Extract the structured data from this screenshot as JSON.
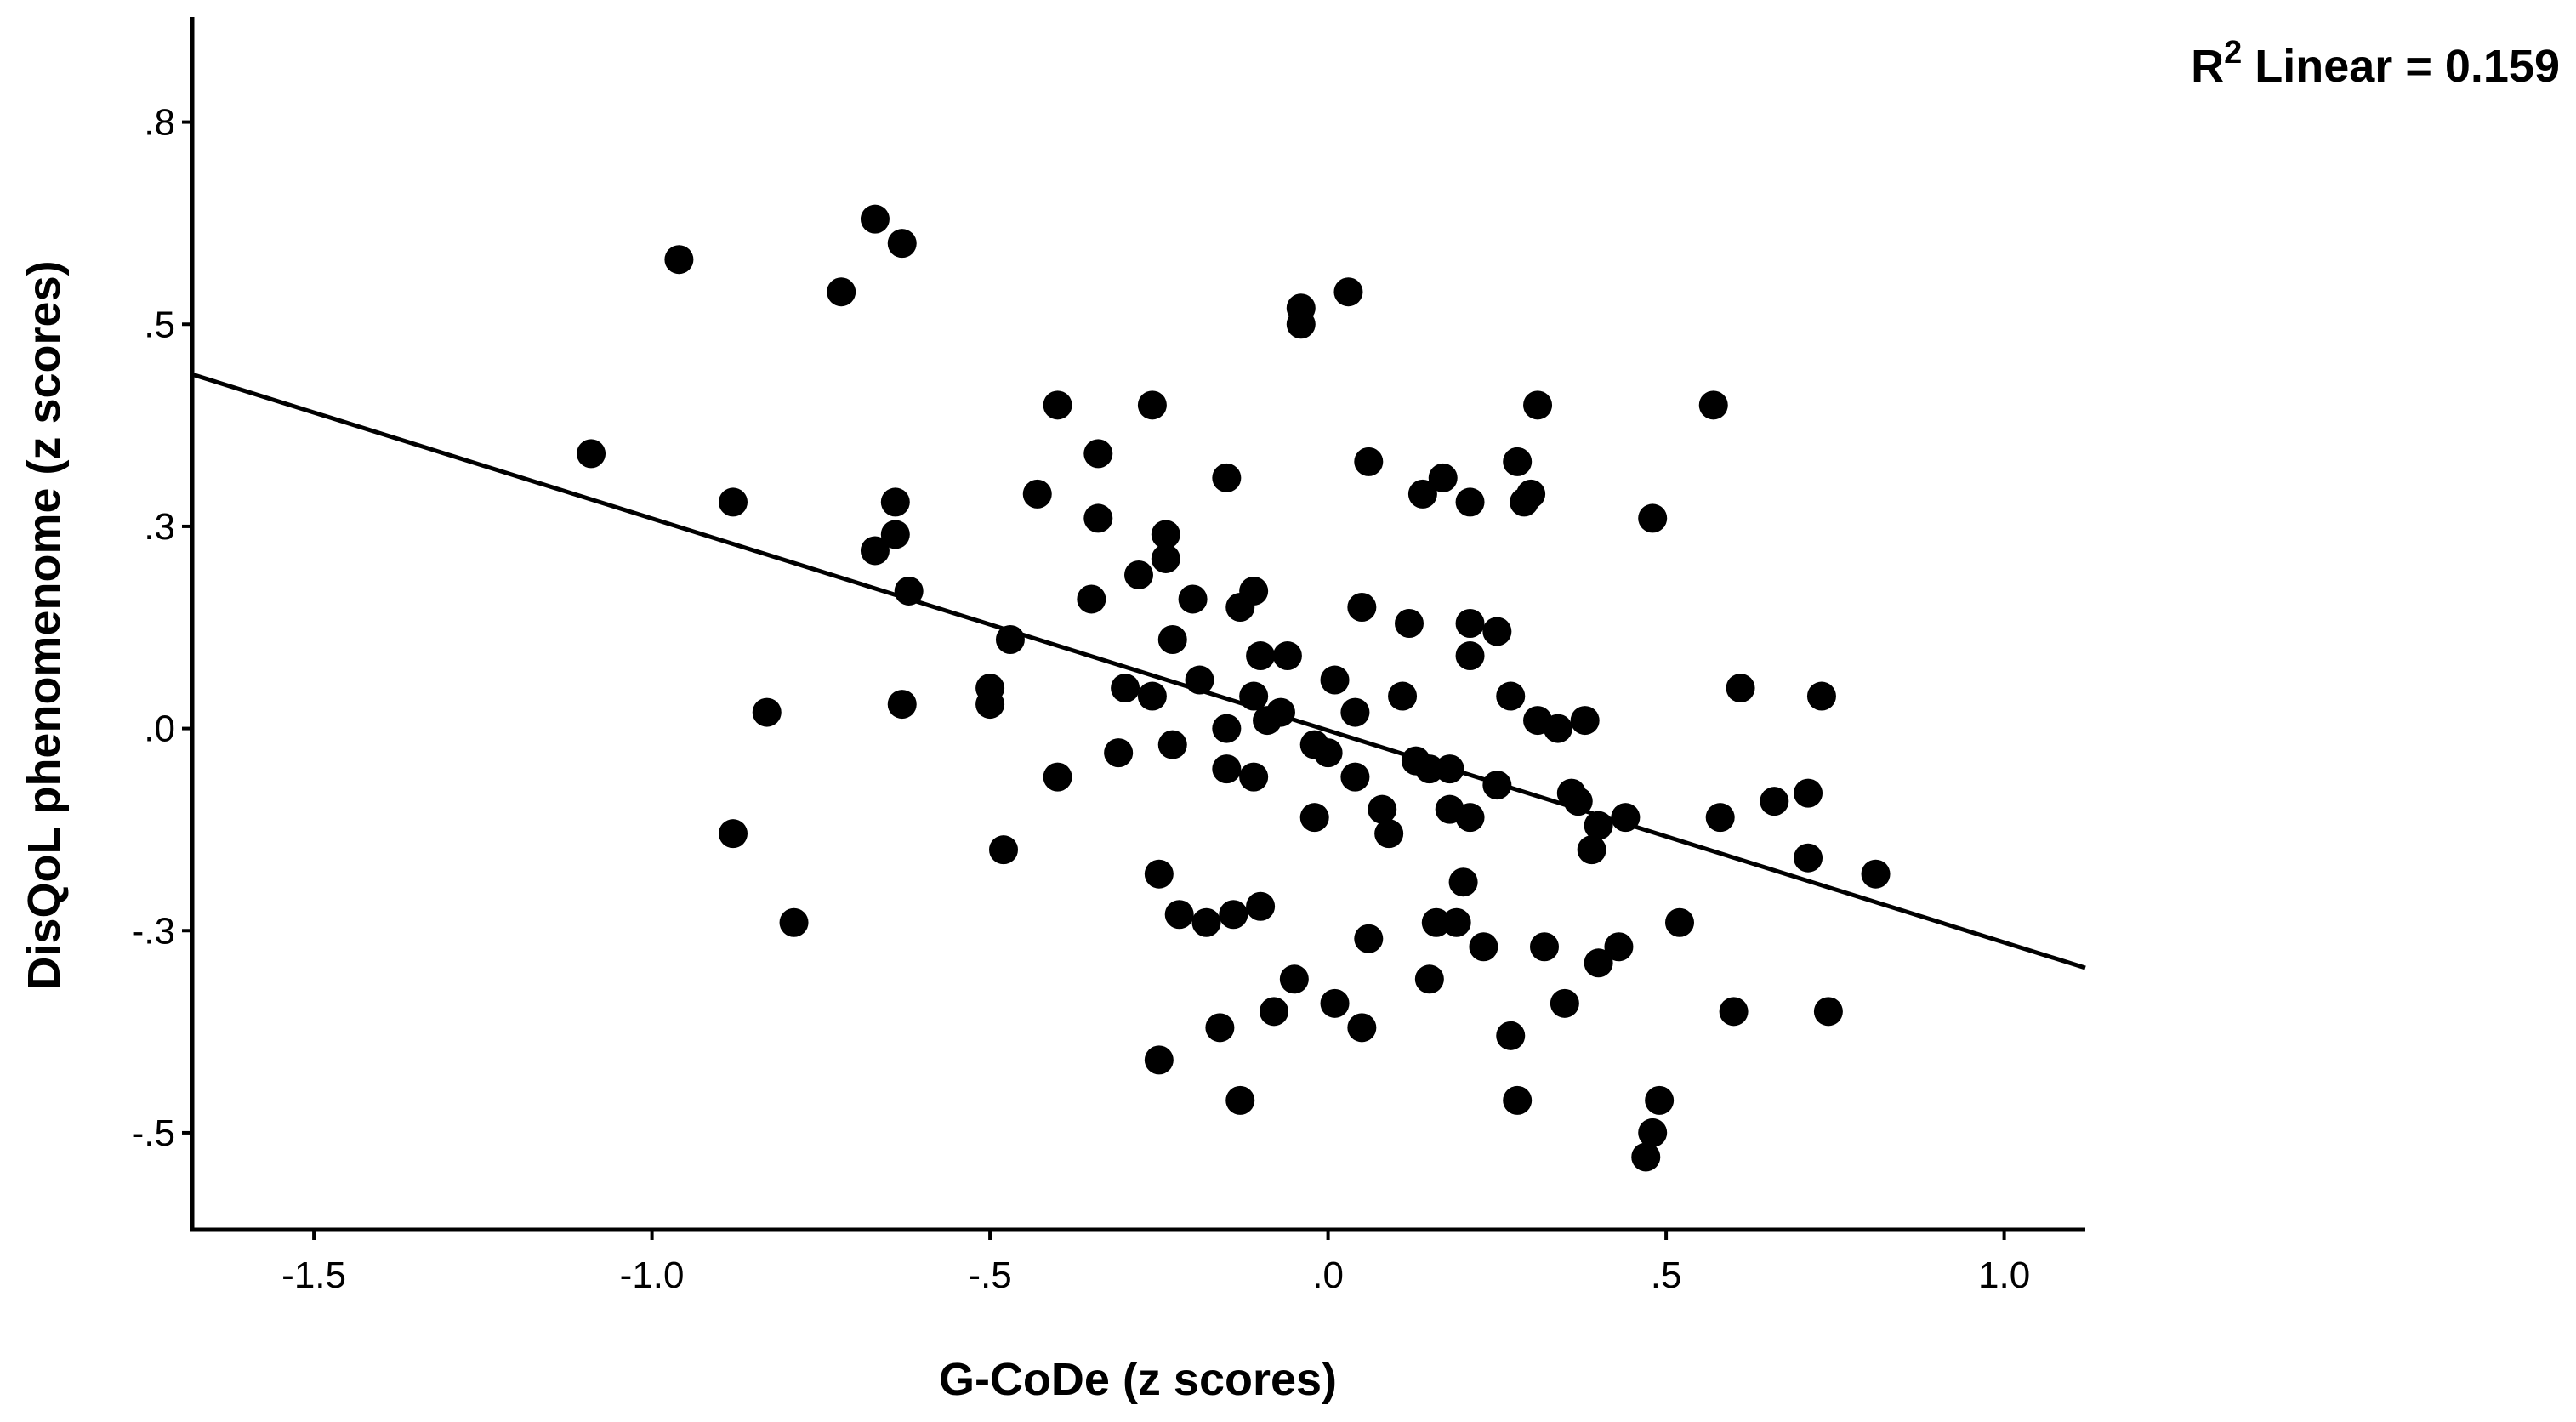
{
  "chart_data": {
    "type": "scatter",
    "xlabel": "G-CoDe (z scores)",
    "ylabel": "DisQoL phenomenome (z scores)",
    "xlim": [
      -1.68,
      1.12
    ],
    "ylim": [
      -0.62,
      0.88
    ],
    "x_ticks": [
      -1.5,
      -1.0,
      -0.5,
      0.0,
      0.5,
      1.0
    ],
    "x_tick_labels": [
      "-1.5",
      "-1.0",
      "-.5",
      ".0",
      ".5",
      "1.0"
    ],
    "y_ticks": [
      -0.5,
      -0.25,
      0.0,
      0.25,
      0.5,
      0.75
    ],
    "y_tick_labels": [
      "-.5",
      "-.3",
      ".0",
      ".3",
      ".5",
      ".8"
    ],
    "grid": false,
    "annotation": {
      "prefix": "R",
      "superscript": "2",
      "text": " Linear = 0.159"
    },
    "fit_line": {
      "x": [
        -1.68,
        1.12
      ],
      "y": [
        0.438,
        -0.296
      ]
    },
    "points": [
      {
        "x": -1.09,
        "y": 0.34
      },
      {
        "x": -0.96,
        "y": 0.58
      },
      {
        "x": -0.88,
        "y": 0.28
      },
      {
        "x": -0.83,
        "y": 0.02
      },
      {
        "x": -0.88,
        "y": -0.13
      },
      {
        "x": -0.79,
        "y": -0.24
      },
      {
        "x": -0.72,
        "y": 0.54
      },
      {
        "x": -0.67,
        "y": 0.63
      },
      {
        "x": -0.63,
        "y": 0.6
      },
      {
        "x": -0.67,
        "y": 0.22
      },
      {
        "x": -0.64,
        "y": 0.24
      },
      {
        "x": -0.64,
        "y": 0.28
      },
      {
        "x": -0.62,
        "y": 0.17
      },
      {
        "x": -0.63,
        "y": 0.03
      },
      {
        "x": -0.5,
        "y": 0.05
      },
      {
        "x": -0.5,
        "y": 0.03
      },
      {
        "x": -0.47,
        "y": 0.11
      },
      {
        "x": -0.48,
        "y": -0.15
      },
      {
        "x": -0.43,
        "y": 0.29
      },
      {
        "x": -0.4,
        "y": 0.4
      },
      {
        "x": -0.4,
        "y": -0.06
      },
      {
        "x": -0.34,
        "y": 0.34
      },
      {
        "x": -0.34,
        "y": 0.26
      },
      {
        "x": -0.35,
        "y": 0.16
      },
      {
        "x": -0.31,
        "y": -0.03
      },
      {
        "x": -0.3,
        "y": 0.05
      },
      {
        "x": -0.28,
        "y": 0.19
      },
      {
        "x": -0.26,
        "y": 0.4
      },
      {
        "x": -0.26,
        "y": 0.04
      },
      {
        "x": -0.25,
        "y": -0.18
      },
      {
        "x": -0.25,
        "y": -0.41
      },
      {
        "x": -0.24,
        "y": 0.24
      },
      {
        "x": -0.24,
        "y": 0.21
      },
      {
        "x": -0.23,
        "y": 0.11
      },
      {
        "x": -0.23,
        "y": -0.02
      },
      {
        "x": -0.22,
        "y": -0.23
      },
      {
        "x": -0.2,
        "y": 0.16
      },
      {
        "x": -0.19,
        "y": 0.06
      },
      {
        "x": -0.18,
        "y": -0.24
      },
      {
        "x": -0.16,
        "y": -0.37
      },
      {
        "x": -0.15,
        "y": 0.31
      },
      {
        "x": -0.15,
        "y": 0.0
      },
      {
        "x": -0.15,
        "y": -0.05
      },
      {
        "x": -0.14,
        "y": -0.23
      },
      {
        "x": -0.13,
        "y": 0.15
      },
      {
        "x": -0.13,
        "y": -0.46
      },
      {
        "x": -0.11,
        "y": 0.17
      },
      {
        "x": -0.11,
        "y": 0.04
      },
      {
        "x": -0.11,
        "y": -0.06
      },
      {
        "x": -0.1,
        "y": 0.09
      },
      {
        "x": -0.1,
        "y": -0.22
      },
      {
        "x": -0.09,
        "y": 0.01
      },
      {
        "x": -0.08,
        "y": -0.35
      },
      {
        "x": -0.07,
        "y": 0.02
      },
      {
        "x": -0.06,
        "y": 0.09
      },
      {
        "x": -0.05,
        "y": -0.31
      },
      {
        "x": -0.04,
        "y": 0.52
      },
      {
        "x": -0.04,
        "y": 0.5
      },
      {
        "x": -0.02,
        "y": -0.11
      },
      {
        "x": -0.02,
        "y": -0.02
      },
      {
        "x": 0.0,
        "y": -0.03
      },
      {
        "x": 0.01,
        "y": 0.06
      },
      {
        "x": 0.01,
        "y": -0.34
      },
      {
        "x": 0.03,
        "y": 0.54
      },
      {
        "x": 0.04,
        "y": 0.02
      },
      {
        "x": 0.04,
        "y": -0.06
      },
      {
        "x": 0.05,
        "y": 0.15
      },
      {
        "x": 0.05,
        "y": -0.37
      },
      {
        "x": 0.06,
        "y": 0.33
      },
      {
        "x": 0.06,
        "y": -0.26
      },
      {
        "x": 0.08,
        "y": -0.1
      },
      {
        "x": 0.09,
        "y": -0.13
      },
      {
        "x": 0.11,
        "y": 0.04
      },
      {
        "x": 0.12,
        "y": 0.13
      },
      {
        "x": 0.13,
        "y": -0.04
      },
      {
        "x": 0.14,
        "y": 0.29
      },
      {
        "x": 0.15,
        "y": -0.05
      },
      {
        "x": 0.15,
        "y": -0.31
      },
      {
        "x": 0.16,
        "y": -0.24
      },
      {
        "x": 0.17,
        "y": 0.31
      },
      {
        "x": 0.18,
        "y": -0.05
      },
      {
        "x": 0.18,
        "y": -0.1
      },
      {
        "x": 0.19,
        "y": -0.24
      },
      {
        "x": 0.2,
        "y": -0.19
      },
      {
        "x": 0.21,
        "y": 0.28
      },
      {
        "x": 0.21,
        "y": 0.09
      },
      {
        "x": 0.21,
        "y": 0.13
      },
      {
        "x": 0.21,
        "y": -0.11
      },
      {
        "x": 0.23,
        "y": -0.27
      },
      {
        "x": 0.25,
        "y": -0.07
      },
      {
        "x": 0.25,
        "y": 0.12
      },
      {
        "x": 0.27,
        "y": 0.04
      },
      {
        "x": 0.27,
        "y": -0.38
      },
      {
        "x": 0.28,
        "y": 0.33
      },
      {
        "x": 0.28,
        "y": -0.46
      },
      {
        "x": 0.29,
        "y": 0.28
      },
      {
        "x": 0.3,
        "y": 0.29
      },
      {
        "x": 0.31,
        "y": 0.4
      },
      {
        "x": 0.31,
        "y": 0.01
      },
      {
        "x": 0.32,
        "y": -0.27
      },
      {
        "x": 0.34,
        "y": 0.0
      },
      {
        "x": 0.35,
        "y": -0.34
      },
      {
        "x": 0.36,
        "y": -0.08
      },
      {
        "x": 0.37,
        "y": -0.09
      },
      {
        "x": 0.38,
        "y": 0.01
      },
      {
        "x": 0.39,
        "y": -0.15
      },
      {
        "x": 0.4,
        "y": -0.29
      },
      {
        "x": 0.4,
        "y": -0.12
      },
      {
        "x": 0.43,
        "y": -0.27
      },
      {
        "x": 0.44,
        "y": -0.11
      },
      {
        "x": 0.47,
        "y": -0.53
      },
      {
        "x": 0.48,
        "y": -0.5
      },
      {
        "x": 0.48,
        "y": 0.26
      },
      {
        "x": 0.49,
        "y": -0.46
      },
      {
        "x": 0.52,
        "y": -0.24
      },
      {
        "x": 0.57,
        "y": 0.4
      },
      {
        "x": 0.58,
        "y": -0.11
      },
      {
        "x": 0.6,
        "y": -0.35
      },
      {
        "x": 0.61,
        "y": 0.05
      },
      {
        "x": 0.66,
        "y": -0.09
      },
      {
        "x": 0.71,
        "y": -0.08
      },
      {
        "x": 0.71,
        "y": -0.16
      },
      {
        "x": 0.73,
        "y": 0.04
      },
      {
        "x": 0.74,
        "y": -0.35
      },
      {
        "x": 0.81,
        "y": -0.18
      }
    ]
  }
}
